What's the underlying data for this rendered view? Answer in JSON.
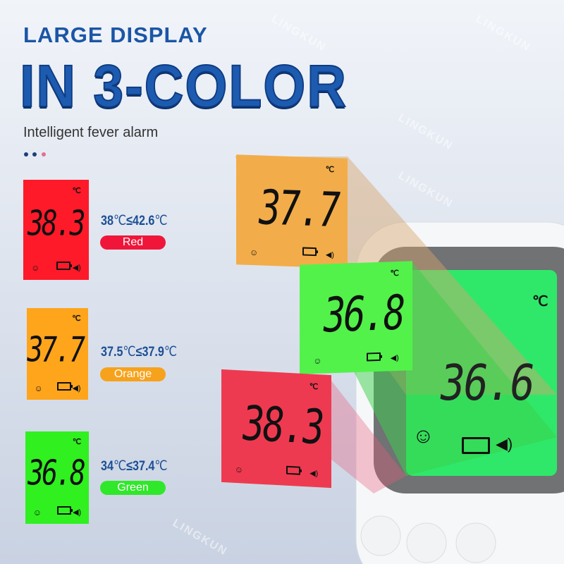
{
  "header": {
    "title_line1": "LARGE DISPLAY",
    "title_line2": "IN 3-COLOR",
    "subtitle": "Intelligent fever alarm"
  },
  "colors": {
    "red": "#ff1a2a",
    "orange": "#ffa51c",
    "green": "#30f020",
    "title_blue": "#1d5bb0",
    "device_screen": "#2fe86a"
  },
  "legend": [
    {
      "reading": "38.3",
      "range_low": "38",
      "range_high": "42.6",
      "unit": "℃",
      "le": "≤",
      "label": "Red",
      "color": "#ff1a2a"
    },
    {
      "reading": "37.7",
      "range_low": "37.5",
      "range_high": "37.9",
      "unit": "℃",
      "le": "≤",
      "label": "Orange",
      "color": "#ffa51c"
    },
    {
      "reading": "36.8",
      "range_low": "34",
      "range_high": "37.4",
      "unit": "℃",
      "le": "≤",
      "label": "Green",
      "color": "#30f020"
    }
  ],
  "lcd_unit": "℃",
  "floating": [
    {
      "reading": "37.7"
    },
    {
      "reading": "36.8"
    },
    {
      "reading": "38.3"
    }
  ],
  "device": {
    "reading": "36.6",
    "unit": "℃"
  },
  "icons": {
    "face": "smiley-face-icon",
    "battery": "battery-icon",
    "speaker": "speaker-icon"
  },
  "watermark": "LINGKUN"
}
